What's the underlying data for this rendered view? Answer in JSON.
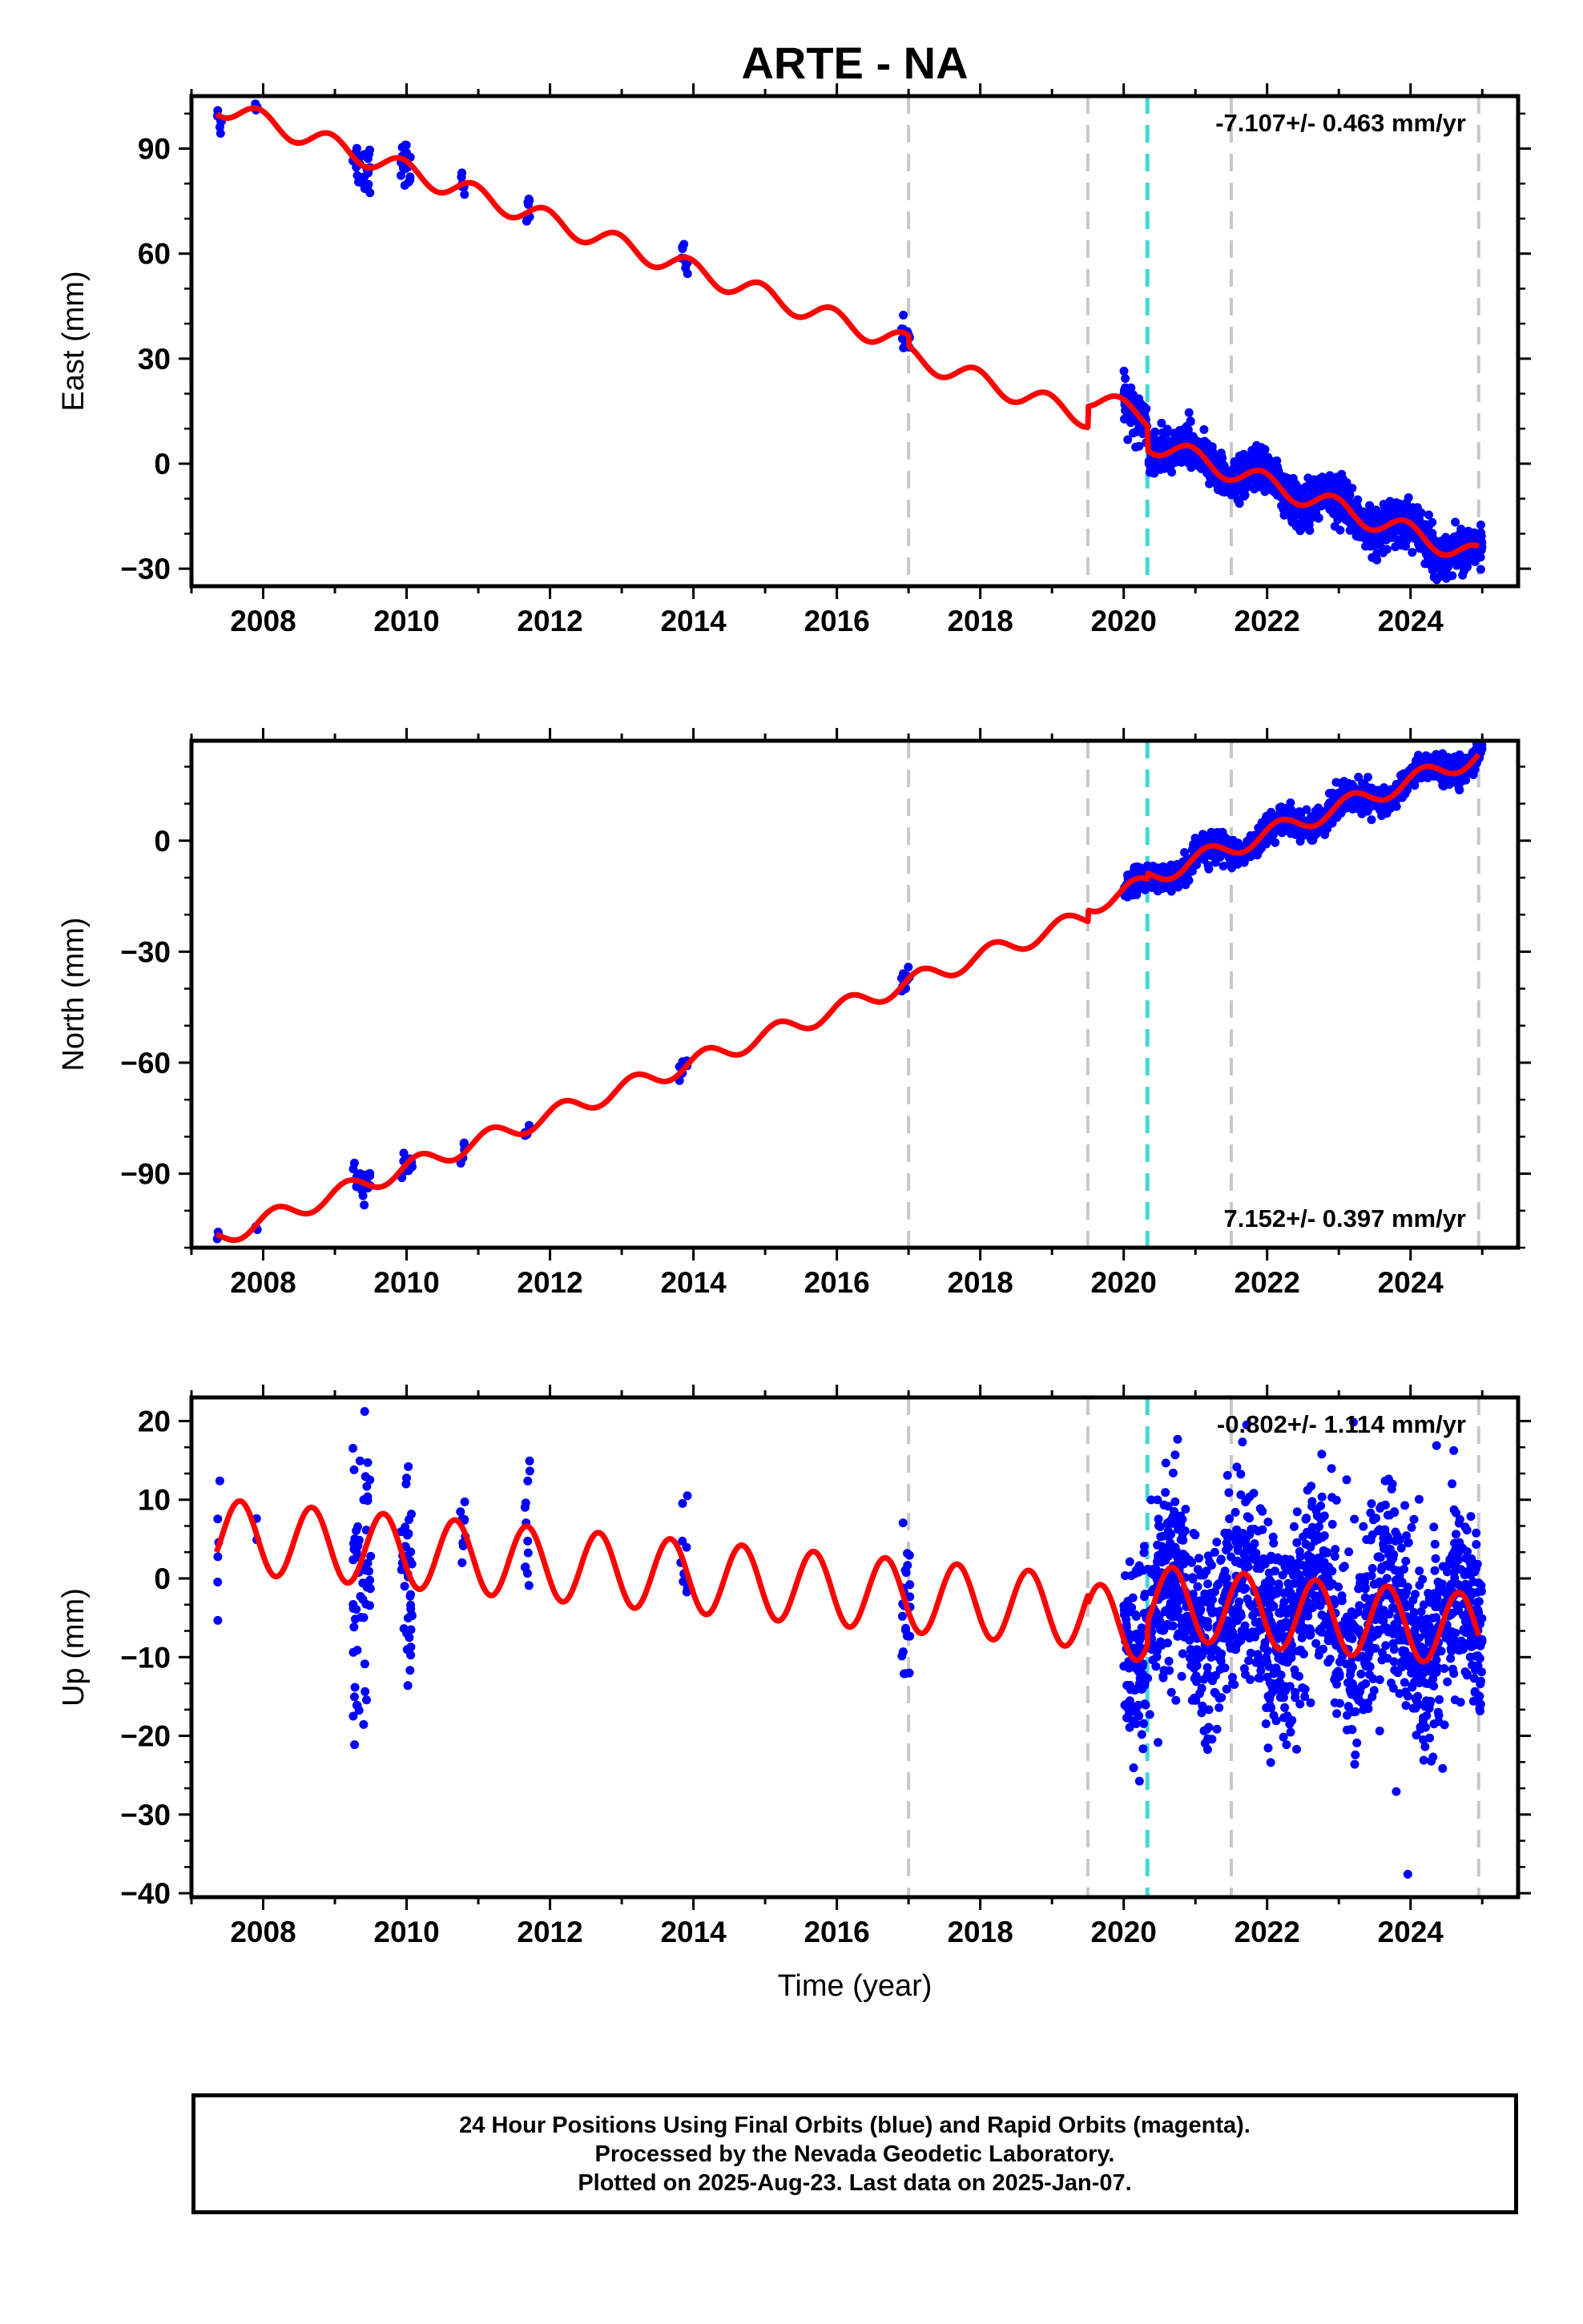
{
  "title": "ARTE - NA",
  "colors": {
    "data": "#0000ff",
    "model": "#ff0000",
    "grid_dash": "#c8c8c8",
    "cyan_dash": "#40d8d8"
  },
  "footer": {
    "line1": "24 Hour Positions Using Final Orbits (blue) and Rapid Orbits (magenta).",
    "line2": "Processed by the Nevada Geodetic Laboratory.",
    "line3": "Plotted on 2025-Aug-23. Last data on 2025-Jan-07."
  },
  "chart_data": [
    {
      "type": "scatter",
      "component": "east",
      "ylabel": "East (mm)",
      "xlabel": "",
      "xlim": [
        2007.0,
        2025.5
      ],
      "ylim": [
        -35,
        105
      ],
      "yticks": [
        -30,
        0,
        30,
        60,
        90
      ],
      "xticks": [
        2008,
        2010,
        2012,
        2014,
        2016,
        2018,
        2020,
        2022,
        2024
      ],
      "rate_label": "-7.107+/- 0.463 mm/yr",
      "rate_position": "top-right",
      "vlines_gray": [
        2017.0,
        2019.5,
        2021.5,
        2024.95
      ],
      "vlines_cyan": [
        2020.33
      ],
      "model": {
        "rate": -7.107,
        "offset": 102.5,
        "t0": 2007.35,
        "annual_amp": 3.0,
        "annual_phase": 2.0,
        "steps": [
          {
            "t": 2017.0,
            "dy": -3.0
          },
          {
            "t": 2019.5,
            "dy": 6.0
          },
          {
            "t": 2020.33,
            "dy": -7.0
          }
        ]
      },
      "data_clusters": [
        {
          "t0": 2007.35,
          "t1": 2007.42,
          "n": 6,
          "spread": 3
        },
        {
          "t0": 2007.88,
          "t1": 2007.92,
          "n": 3,
          "spread": 1
        },
        {
          "t0": 2009.25,
          "t1": 2009.5,
          "n": 28,
          "spread": 4
        },
        {
          "t0": 2009.92,
          "t1": 2010.08,
          "n": 18,
          "spread": 3
        },
        {
          "t0": 2010.75,
          "t1": 2010.82,
          "n": 8,
          "spread": 2
        },
        {
          "t0": 2011.65,
          "t1": 2011.72,
          "n": 8,
          "spread": 2
        },
        {
          "t0": 2013.8,
          "t1": 2013.92,
          "n": 10,
          "spread": 2
        },
        {
          "t0": 2016.9,
          "t1": 2017.02,
          "n": 14,
          "spread": 3
        },
        {
          "t0": 2020.0,
          "t1": 2025.0,
          "n": 1400,
          "spread": 3
        }
      ]
    },
    {
      "type": "scatter",
      "component": "north",
      "ylabel": "North (mm)",
      "xlabel": "",
      "xlim": [
        2007.0,
        2025.5
      ],
      "ylim": [
        -110,
        27
      ],
      "yticks": [
        -90,
        -60,
        -30,
        0
      ],
      "xticks": [
        2008,
        2010,
        2012,
        2014,
        2016,
        2018,
        2020,
        2022,
        2024
      ],
      "rate_label": "7.152+/- 0.397 mm/yr",
      "rate_position": "bottom-right",
      "vlines_gray": [
        2017.0,
        2019.5,
        2021.5,
        2024.95
      ],
      "vlines_cyan": [
        2020.33
      ],
      "model": {
        "rate": 7.152,
        "offset": -107.5,
        "t0": 2007.35,
        "annual_amp": 2.5,
        "annual_phase": 0.5,
        "steps": [
          {
            "t": 2019.5,
            "dy": 3.0
          },
          {
            "t": 2020.33,
            "dy": 1.5
          }
        ]
      },
      "data_clusters": [
        {
          "t0": 2007.35,
          "t1": 2007.4,
          "n": 3,
          "spread": 1
        },
        {
          "t0": 2007.88,
          "t1": 2007.92,
          "n": 2,
          "spread": 1
        },
        {
          "t0": 2009.25,
          "t1": 2009.5,
          "n": 25,
          "spread": 2
        },
        {
          "t0": 2009.92,
          "t1": 2010.08,
          "n": 15,
          "spread": 2
        },
        {
          "t0": 2010.75,
          "t1": 2010.82,
          "n": 6,
          "spread": 1.5
        },
        {
          "t0": 2011.65,
          "t1": 2011.72,
          "n": 6,
          "spread": 1.5
        },
        {
          "t0": 2013.8,
          "t1": 2013.92,
          "n": 8,
          "spread": 1.5
        },
        {
          "t0": 2016.9,
          "t1": 2017.02,
          "n": 12,
          "spread": 2
        },
        {
          "t0": 2020.0,
          "t1": 2025.0,
          "n": 1400,
          "spread": 1.8
        }
      ]
    },
    {
      "type": "scatter",
      "component": "up",
      "ylabel": "Up (mm)",
      "xlabel": "Time (year)",
      "xlim": [
        2007.0,
        2025.5
      ],
      "ylim": [
        -40.5,
        23
      ],
      "yticks": [
        -40,
        -30,
        -20,
        -10,
        0,
        10,
        20
      ],
      "xticks": [
        2008,
        2010,
        2012,
        2014,
        2016,
        2018,
        2020,
        2022,
        2024
      ],
      "rate_label": "-0.802+/- 1.114 mm/yr",
      "rate_position": "top-right",
      "vlines_gray": [
        2017.0,
        2019.5,
        2021.5,
        2024.95
      ],
      "vlines_cyan": [
        2020.33
      ],
      "model": {
        "rate": -0.802,
        "offset": 5.5,
        "t0": 2007.35,
        "annual_amp": 4.6,
        "annual_phase": 3.6,
        "steps": [
          {
            "t": 2019.5,
            "dy": -1.0
          },
          {
            "t": 2020.33,
            "dy": 3.0
          }
        ]
      },
      "data_clusters": [
        {
          "t0": 2007.35,
          "t1": 2007.4,
          "n": 6,
          "spread": 5
        },
        {
          "t0": 2007.88,
          "t1": 2007.92,
          "n": 2,
          "spread": 4
        },
        {
          "t0": 2009.25,
          "t1": 2009.5,
          "n": 60,
          "spread": 9
        },
        {
          "t0": 2009.92,
          "t1": 2010.08,
          "n": 40,
          "spread": 7
        },
        {
          "t0": 2010.75,
          "t1": 2010.82,
          "n": 10,
          "spread": 3
        },
        {
          "t0": 2011.65,
          "t1": 2011.72,
          "n": 12,
          "spread": 4
        },
        {
          "t0": 2013.8,
          "t1": 2013.92,
          "n": 10,
          "spread": 3
        },
        {
          "t0": 2016.9,
          "t1": 2017.02,
          "n": 24,
          "spread": 6
        },
        {
          "t0": 2020.0,
          "t1": 2025.0,
          "n": 1600,
          "spread": 6
        }
      ]
    }
  ]
}
